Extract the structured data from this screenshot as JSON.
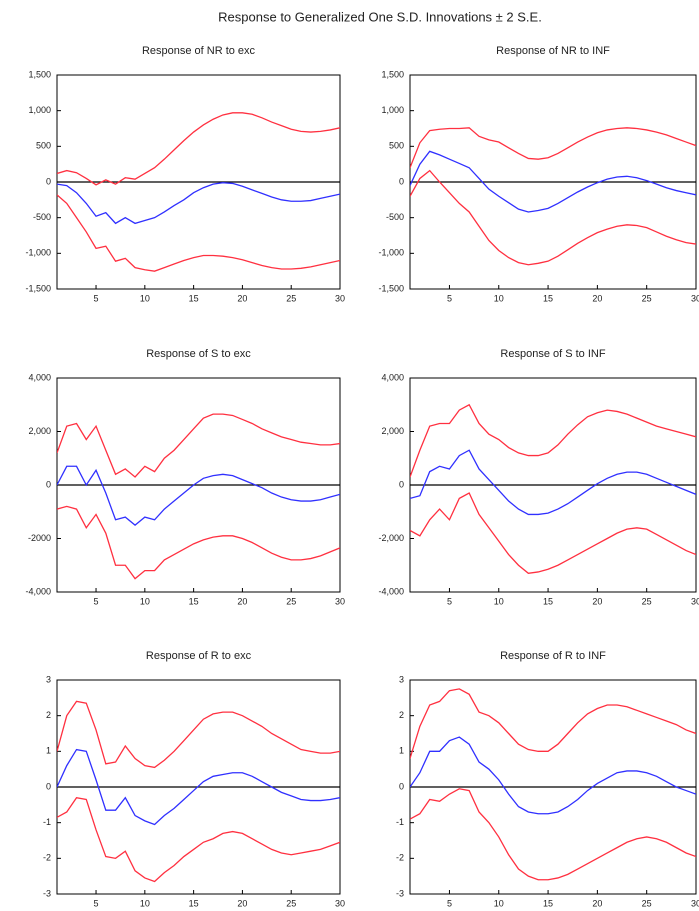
{
  "title": "Response to Generalized One S.D. Innovations ± 2 S.E.",
  "chart_data": [
    {
      "type": "line",
      "title": "Response of NR to exc",
      "x": [
        1,
        2,
        3,
        4,
        5,
        6,
        7,
        8,
        9,
        10,
        11,
        12,
        13,
        14,
        15,
        16,
        17,
        18,
        19,
        20,
        21,
        22,
        23,
        24,
        25,
        26,
        27,
        28,
        29,
        30
      ],
      "xlim": [
        1,
        30
      ],
      "xticks": [
        5,
        10,
        15,
        20,
        25,
        30
      ],
      "ylim": [
        -1500,
        1500
      ],
      "yticks": [
        {
          "value": -1500,
          "label": "-1,500"
        },
        {
          "value": -1000,
          "label": "-1,000"
        },
        -500,
        0,
        500,
        {
          "value": 1000,
          "label": "1,000"
        },
        {
          "value": 1500,
          "label": "1,500"
        }
      ],
      "zero_line": true,
      "series": [
        {
          "color": "#ff3040",
          "values": [
            120,
            160,
            130,
            50,
            -40,
            30,
            -30,
            60,
            40,
            120,
            200,
            320,
            450,
            580,
            700,
            800,
            880,
            940,
            970,
            970,
            950,
            900,
            840,
            790,
            740,
            710,
            700,
            710,
            730,
            760
          ]
        },
        {
          "color": "#3030ff",
          "values": [
            -30,
            -50,
            -150,
            -300,
            -480,
            -430,
            -580,
            -500,
            -580,
            -540,
            -500,
            -420,
            -330,
            -250,
            -150,
            -80,
            -30,
            -10,
            -20,
            -60,
            -110,
            -160,
            -210,
            -250,
            -270,
            -270,
            -260,
            -230,
            -200,
            -170
          ]
        },
        {
          "color": "#ff3040",
          "values": [
            -180,
            -300,
            -500,
            -700,
            -930,
            -900,
            -1110,
            -1070,
            -1200,
            -1230,
            -1250,
            -1200,
            -1150,
            -1100,
            -1060,
            -1030,
            -1030,
            -1040,
            -1060,
            -1090,
            -1130,
            -1170,
            -1200,
            -1220,
            -1220,
            -1210,
            -1190,
            -1160,
            -1130,
            -1100
          ]
        }
      ]
    },
    {
      "type": "line",
      "title": "Response of NR to INF",
      "x": [
        1,
        2,
        3,
        4,
        5,
        6,
        7,
        8,
        9,
        10,
        11,
        12,
        13,
        14,
        15,
        16,
        17,
        18,
        19,
        20,
        21,
        22,
        23,
        24,
        25,
        26,
        27,
        28,
        29,
        30
      ],
      "xlim": [
        1,
        30
      ],
      "xticks": [
        5,
        10,
        15,
        20,
        25,
        30
      ],
      "ylim": [
        -1500,
        1500
      ],
      "yticks": [
        {
          "value": -1500,
          "label": "-1,500"
        },
        {
          "value": -1000,
          "label": "-1,000"
        },
        -500,
        0,
        500,
        {
          "value": 1000,
          "label": "1,000"
        },
        {
          "value": 1500,
          "label": "1,500"
        }
      ],
      "zero_line": true,
      "series": [
        {
          "color": "#ff3040",
          "values": [
            200,
            550,
            720,
            740,
            750,
            750,
            760,
            640,
            590,
            560,
            480,
            400,
            330,
            320,
            340,
            400,
            480,
            560,
            630,
            690,
            730,
            750,
            760,
            750,
            730,
            700,
            660,
            610,
            560,
            510
          ]
        },
        {
          "color": "#3030ff",
          "values": [
            -50,
            250,
            430,
            380,
            320,
            260,
            200,
            50,
            -100,
            -200,
            -290,
            -380,
            -420,
            -400,
            -370,
            -300,
            -220,
            -140,
            -70,
            -10,
            40,
            70,
            80,
            60,
            20,
            -30,
            -80,
            -120,
            -150,
            -180
          ]
        },
        {
          "color": "#ff3040",
          "values": [
            -200,
            50,
            160,
            0,
            -150,
            -300,
            -420,
            -620,
            -820,
            -960,
            -1060,
            -1130,
            -1160,
            -1140,
            -1110,
            -1040,
            -950,
            -860,
            -780,
            -710,
            -660,
            -620,
            -600,
            -610,
            -640,
            -700,
            -760,
            -810,
            -850,
            -870
          ]
        }
      ]
    },
    {
      "type": "line",
      "title": "Response of S to exc",
      "x": [
        1,
        2,
        3,
        4,
        5,
        6,
        7,
        8,
        9,
        10,
        11,
        12,
        13,
        14,
        15,
        16,
        17,
        18,
        19,
        20,
        21,
        22,
        23,
        24,
        25,
        26,
        27,
        28,
        29,
        30
      ],
      "xlim": [
        1,
        30
      ],
      "xticks": [
        5,
        10,
        15,
        20,
        25,
        30
      ],
      "ylim": [
        -4000,
        4000
      ],
      "yticks": [
        {
          "value": -4000,
          "label": "-4,000"
        },
        -2000,
        0,
        {
          "value": 2000,
          "label": "2,000"
        },
        {
          "value": 4000,
          "label": "4,000"
        }
      ],
      "zero_line": true,
      "series": [
        {
          "color": "#ff3040",
          "values": [
            1200,
            2200,
            2300,
            1700,
            2200,
            1300,
            400,
            600,
            300,
            700,
            500,
            1000,
            1300,
            1700,
            2100,
            2500,
            2650,
            2650,
            2600,
            2450,
            2300,
            2100,
            1950,
            1800,
            1700,
            1600,
            1550,
            1500,
            1500,
            1550
          ]
        },
        {
          "color": "#3030ff",
          "values": [
            0,
            700,
            700,
            0,
            550,
            -300,
            -1300,
            -1200,
            -1500,
            -1200,
            -1300,
            -900,
            -600,
            -300,
            0,
            250,
            350,
            400,
            350,
            200,
            50,
            -100,
            -300,
            -450,
            -550,
            -600,
            -600,
            -550,
            -450,
            -350
          ]
        },
        {
          "color": "#ff3040",
          "values": [
            -900,
            -800,
            -900,
            -1600,
            -1100,
            -1800,
            -3000,
            -3000,
            -3500,
            -3200,
            -3200,
            -2800,
            -2600,
            -2400,
            -2200,
            -2050,
            -1950,
            -1900,
            -1900,
            -2000,
            -2150,
            -2350,
            -2550,
            -2700,
            -2800,
            -2800,
            -2750,
            -2650,
            -2500,
            -2350
          ]
        }
      ]
    },
    {
      "type": "line",
      "title": "Response of S to INF",
      "x": [
        1,
        2,
        3,
        4,
        5,
        6,
        7,
        8,
        9,
        10,
        11,
        12,
        13,
        14,
        15,
        16,
        17,
        18,
        19,
        20,
        21,
        22,
        23,
        24,
        25,
        26,
        27,
        28,
        29,
        30
      ],
      "xlim": [
        1,
        30
      ],
      "xticks": [
        5,
        10,
        15,
        20,
        25,
        30
      ],
      "ylim": [
        -4000,
        4000
      ],
      "yticks": [
        {
          "value": -4000,
          "label": "-4,000"
        },
        {
          "value": -2000,
          "label": "-2,000"
        },
        0,
        {
          "value": 2000,
          "label": "2,000"
        },
        {
          "value": 4000,
          "label": "4,000"
        }
      ],
      "zero_line": true,
      "series": [
        {
          "color": "#ff3040",
          "values": [
            300,
            1300,
            2200,
            2300,
            2300,
            2800,
            3000,
            2300,
            1900,
            1700,
            1400,
            1200,
            1100,
            1100,
            1200,
            1500,
            1900,
            2250,
            2550,
            2700,
            2800,
            2750,
            2650,
            2500,
            2350,
            2200,
            2100,
            2000,
            1900,
            1800
          ]
        },
        {
          "color": "#3030ff",
          "values": [
            -500,
            -400,
            500,
            700,
            600,
            1100,
            1300,
            600,
            200,
            -200,
            -600,
            -900,
            -1100,
            -1100,
            -1050,
            -900,
            -700,
            -450,
            -200,
            50,
            250,
            400,
            480,
            480,
            400,
            250,
            100,
            -50,
            -200,
            -350
          ]
        },
        {
          "color": "#ff3040",
          "values": [
            -1700,
            -1900,
            -1300,
            -900,
            -1300,
            -500,
            -300,
            -1100,
            -1600,
            -2100,
            -2600,
            -3000,
            -3300,
            -3250,
            -3150,
            -3000,
            -2800,
            -2600,
            -2400,
            -2200,
            -2000,
            -1800,
            -1650,
            -1600,
            -1650,
            -1850,
            -2050,
            -2250,
            -2450,
            -2600
          ]
        }
      ]
    },
    {
      "type": "line",
      "title": "Response of R to exc",
      "x": [
        1,
        2,
        3,
        4,
        5,
        6,
        7,
        8,
        9,
        10,
        11,
        12,
        13,
        14,
        15,
        16,
        17,
        18,
        19,
        20,
        21,
        22,
        23,
        24,
        25,
        26,
        27,
        28,
        29,
        30
      ],
      "xlim": [
        1,
        30
      ],
      "xticks": [
        5,
        10,
        15,
        20,
        25,
        30
      ],
      "ylim": [
        -3,
        3
      ],
      "yticks": [
        -3,
        -2,
        -1,
        0,
        1,
        2,
        3
      ],
      "zero_line": true,
      "series": [
        {
          "color": "#ff3040",
          "values": [
            1.0,
            2.0,
            2.4,
            2.35,
            1.6,
            0.65,
            0.7,
            1.15,
            0.8,
            0.6,
            0.55,
            0.75,
            1.0,
            1.3,
            1.6,
            1.9,
            2.05,
            2.1,
            2.1,
            2.0,
            1.85,
            1.7,
            1.5,
            1.35,
            1.2,
            1.05,
            1.0,
            0.95,
            0.95,
            1.0
          ]
        },
        {
          "color": "#3030ff",
          "values": [
            0,
            0.6,
            1.05,
            1.0,
            0.2,
            -0.65,
            -0.65,
            -0.3,
            -0.8,
            -0.95,
            -1.05,
            -0.8,
            -0.6,
            -0.35,
            -0.1,
            0.15,
            0.3,
            0.35,
            0.4,
            0.4,
            0.3,
            0.15,
            0,
            -0.15,
            -0.25,
            -0.35,
            -0.38,
            -0.38,
            -0.35,
            -0.3
          ]
        },
        {
          "color": "#ff3040",
          "values": [
            -0.85,
            -0.7,
            -0.3,
            -0.35,
            -1.2,
            -1.95,
            -2.0,
            -1.8,
            -2.35,
            -2.55,
            -2.65,
            -2.4,
            -2.2,
            -1.95,
            -1.75,
            -1.55,
            -1.45,
            -1.3,
            -1.25,
            -1.3,
            -1.45,
            -1.6,
            -1.75,
            -1.85,
            -1.9,
            -1.85,
            -1.8,
            -1.75,
            -1.65,
            -1.55
          ]
        }
      ]
    },
    {
      "type": "line",
      "title": "Response of R to INF",
      "x": [
        1,
        2,
        3,
        4,
        5,
        6,
        7,
        8,
        9,
        10,
        11,
        12,
        13,
        14,
        15,
        16,
        17,
        18,
        19,
        20,
        21,
        22,
        23,
        24,
        25,
        26,
        27,
        28,
        29,
        30
      ],
      "xlim": [
        1,
        30
      ],
      "xticks": [
        5,
        10,
        15,
        20,
        25,
        30
      ],
      "ylim": [
        -3,
        3
      ],
      "yticks": [
        -3,
        -2,
        -1,
        0,
        1,
        2,
        3
      ],
      "zero_line": true,
      "series": [
        {
          "color": "#ff3040",
          "values": [
            0.8,
            1.7,
            2.3,
            2.4,
            2.7,
            2.75,
            2.6,
            2.1,
            2.0,
            1.8,
            1.5,
            1.2,
            1.05,
            1.0,
            1.0,
            1.2,
            1.5,
            1.8,
            2.05,
            2.2,
            2.3,
            2.3,
            2.25,
            2.15,
            2.05,
            1.95,
            1.85,
            1.75,
            1.6,
            1.5
          ]
        },
        {
          "color": "#3030ff",
          "values": [
            0,
            0.4,
            1.0,
            1.0,
            1.3,
            1.4,
            1.2,
            0.7,
            0.5,
            0.2,
            -0.2,
            -0.55,
            -0.7,
            -0.75,
            -0.75,
            -0.7,
            -0.55,
            -0.35,
            -0.1,
            0.1,
            0.25,
            0.4,
            0.45,
            0.45,
            0.4,
            0.3,
            0.15,
            0,
            -0.1,
            -0.2
          ]
        },
        {
          "color": "#ff3040",
          "values": [
            -0.9,
            -0.75,
            -0.35,
            -0.4,
            -0.2,
            -0.05,
            -0.1,
            -0.7,
            -1.0,
            -1.4,
            -1.9,
            -2.3,
            -2.5,
            -2.6,
            -2.6,
            -2.55,
            -2.45,
            -2.3,
            -2.15,
            -2.0,
            -1.85,
            -1.7,
            -1.55,
            -1.45,
            -1.4,
            -1.45,
            -1.55,
            -1.7,
            -1.85,
            -1.95
          ]
        }
      ]
    }
  ]
}
